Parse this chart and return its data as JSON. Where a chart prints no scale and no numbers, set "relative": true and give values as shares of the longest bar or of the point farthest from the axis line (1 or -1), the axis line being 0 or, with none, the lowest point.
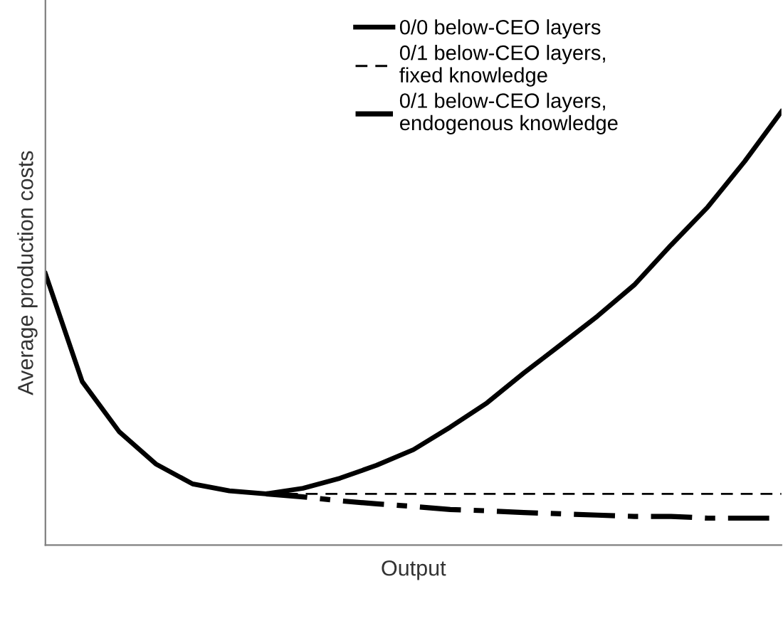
{
  "chart_data": {
    "type": "line",
    "relative": true,
    "xlabel": "Output",
    "ylabel": "Average production costs",
    "legend": "top",
    "grid": false,
    "marker": "none",
    "categories": [
      null,
      null,
      null,
      null,
      null,
      null,
      null,
      null,
      null,
      null,
      null,
      null,
      null,
      null,
      null,
      null,
      null,
      null,
      null,
      null,
      null
    ],
    "series": [
      {
        "name": "0/0 below-CEO layers",
        "color": "#000000",
        "line_style": "solid",
        "values": [
          0.626,
          0.377,
          0.262,
          0.187,
          0.141,
          0.125,
          0.118,
          0.131,
          0.154,
          0.184,
          0.22,
          0.272,
          0.328,
          0.397,
          0.462,
          0.528,
          0.6,
          0.692,
          0.78,
          0.885,
          1.0
        ]
      },
      {
        "name": "0/1 below-CEO layers,\nfixed knowledge",
        "color": "#000000",
        "line_style": "dashed",
        "values": [
          null,
          null,
          null,
          null,
          null,
          null,
          0.118,
          0.118,
          0.118,
          0.118,
          0.118,
          0.118,
          0.118,
          0.118,
          0.118,
          0.118,
          0.118,
          0.118,
          0.118,
          0.118,
          0.118
        ]
      },
      {
        "name": "0/1 below-CEO layers,\nendogenous knowledge",
        "color": "#000000",
        "line_style": "dashdot",
        "values": [
          null,
          null,
          null,
          null,
          null,
          null,
          0.118,
          0.111,
          0.102,
          0.095,
          0.089,
          0.082,
          0.079,
          0.075,
          0.072,
          0.069,
          0.066,
          0.066,
          0.062,
          0.062,
          0.062
        ]
      }
    ]
  }
}
